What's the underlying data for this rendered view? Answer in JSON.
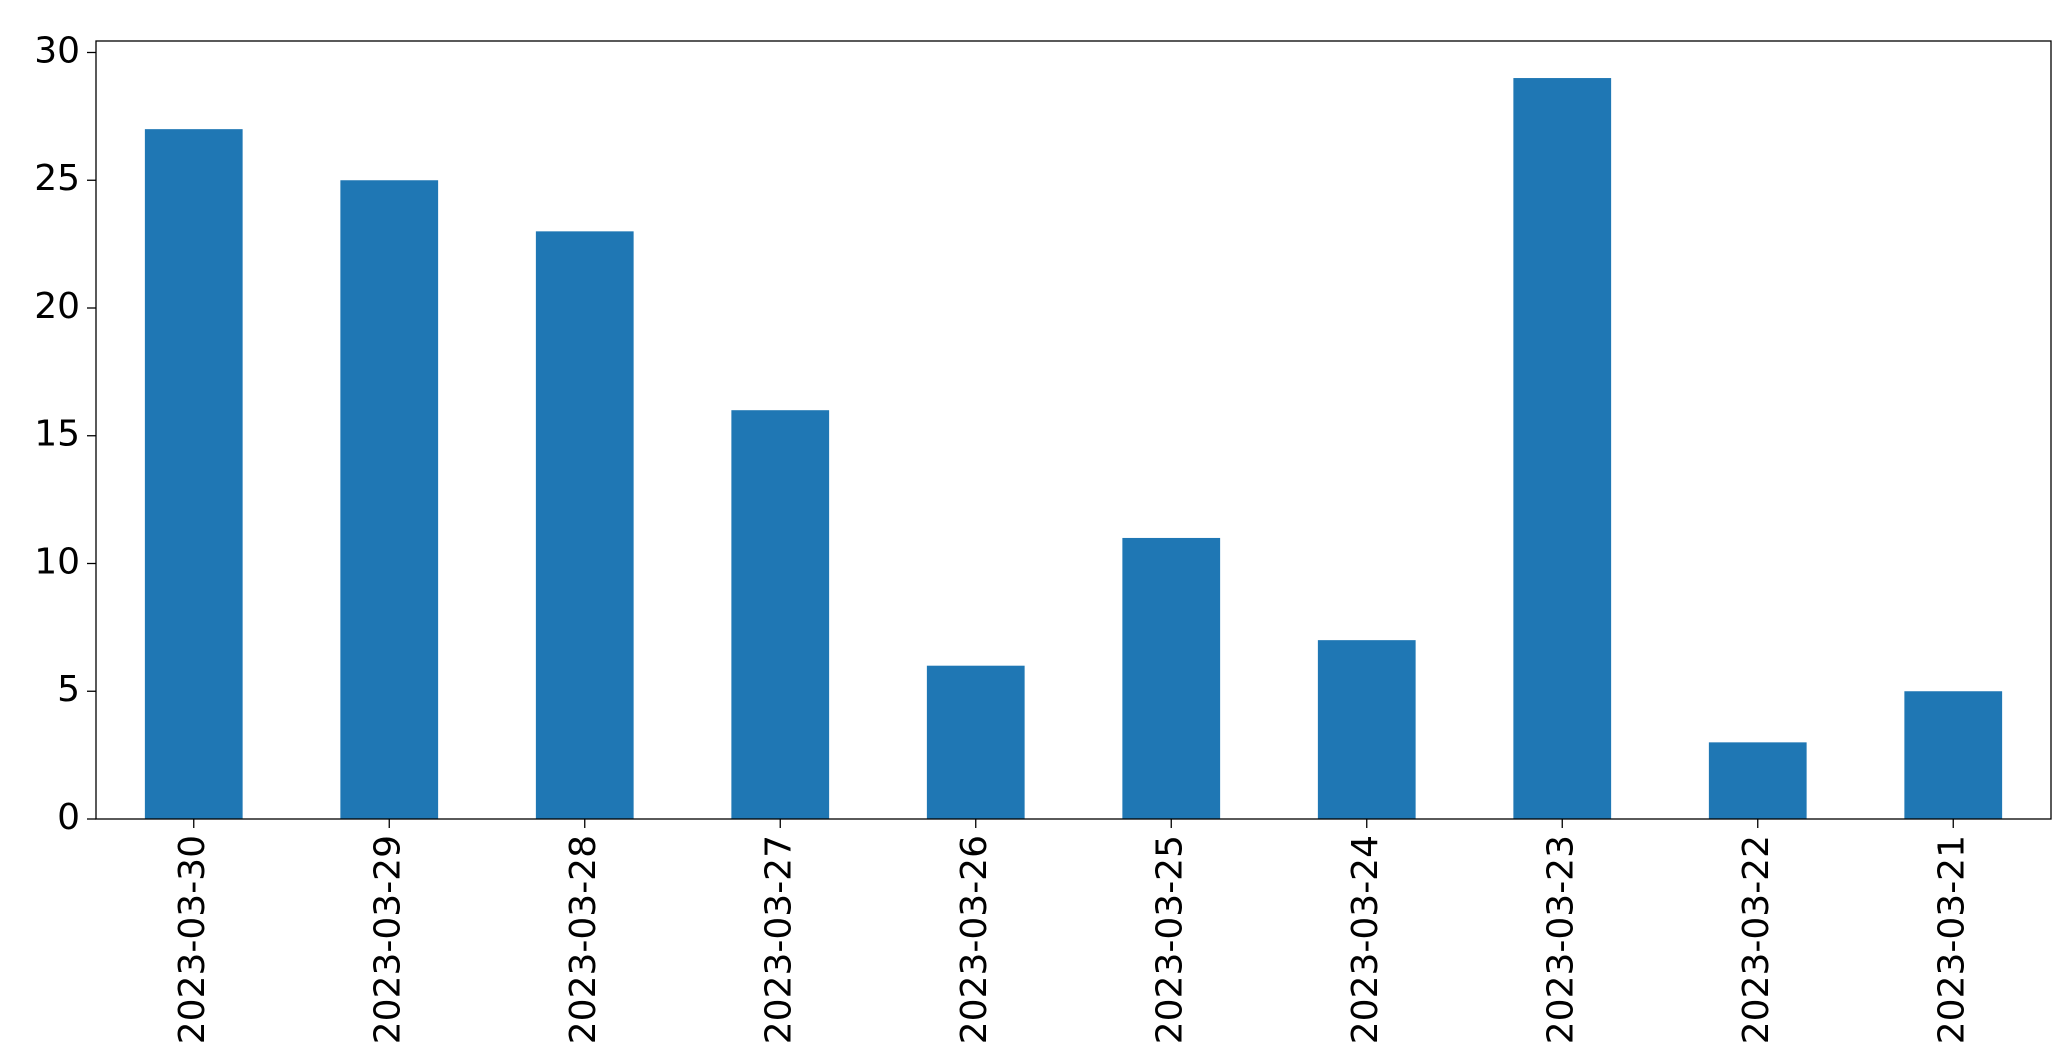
{
  "chart_data": {
    "type": "bar",
    "categories": [
      "2023-03-30",
      "2023-03-29",
      "2023-03-28",
      "2023-03-27",
      "2023-03-26",
      "2023-03-25",
      "2023-03-24",
      "2023-03-23",
      "2023-03-22",
      "2023-03-21"
    ],
    "values": [
      27,
      25,
      23,
      16,
      6,
      11,
      7,
      29,
      3,
      5
    ],
    "color": "#1f77b4",
    "ylim": [
      0,
      30.45
    ],
    "yticks": [
      0,
      5,
      10,
      15,
      20,
      25,
      30
    ],
    "grid": false
  }
}
